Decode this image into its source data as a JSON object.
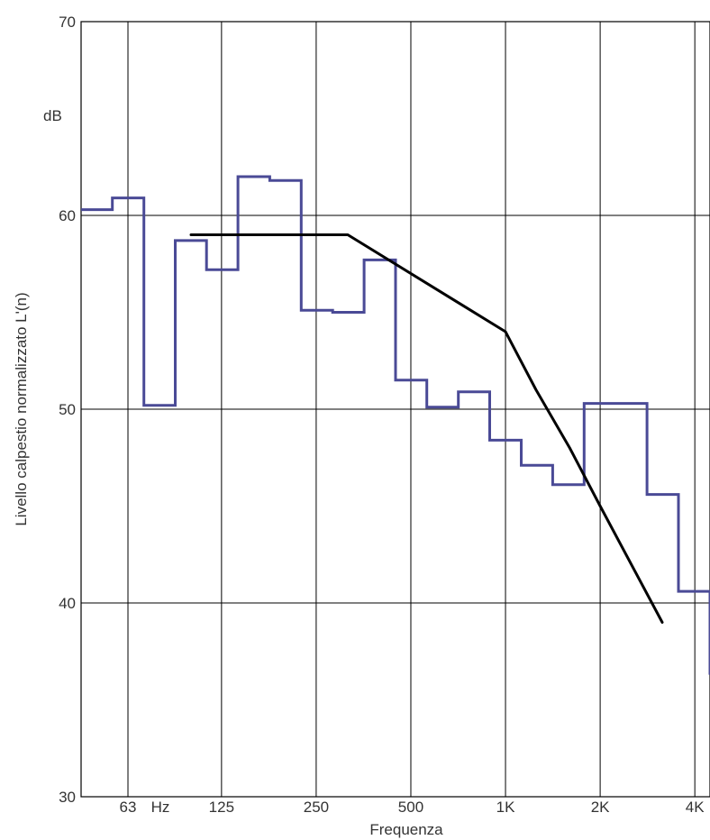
{
  "chart_data": {
    "type": "line",
    "xlabel": "Frequenza",
    "ylabel": "Livello calpestio normalizzato L'(n)",
    "yunit": "dB",
    "xunit": "Hz",
    "x_scale": "log",
    "ylim": [
      30,
      70
    ],
    "xlim": [
      44.7,
      4470
    ],
    "grid": true,
    "x_ticks": [
      {
        "value": 63,
        "label": "63"
      },
      {
        "value": 125,
        "label": "125"
      },
      {
        "value": 250,
        "label": "250"
      },
      {
        "value": 500,
        "label": "500"
      },
      {
        "value": 1000,
        "label": "1K"
      },
      {
        "value": 2000,
        "label": "2K"
      },
      {
        "value": 4000,
        "label": "4K"
      }
    ],
    "y_ticks": [
      30,
      40,
      50,
      60,
      70
    ],
    "series": [
      {
        "color": "#4a4a96",
        "style": "step",
        "bands": [
          {
            "from": 44.7,
            "to": 56.2,
            "value": 60.3
          },
          {
            "from": 56.2,
            "to": 70.8,
            "value": 60.9
          },
          {
            "from": 70.8,
            "to": 89.1,
            "value": 50.2
          },
          {
            "from": 89.1,
            "to": 112,
            "value": 58.7
          },
          {
            "from": 112,
            "to": 141,
            "value": 57.2
          },
          {
            "from": 141,
            "to": 178,
            "value": 62.0
          },
          {
            "from": 178,
            "to": 224,
            "value": 61.8
          },
          {
            "from": 224,
            "to": 282,
            "value": 55.1
          },
          {
            "from": 282,
            "to": 355,
            "value": 55.0
          },
          {
            "from": 355,
            "to": 447,
            "value": 57.7
          },
          {
            "from": 447,
            "to": 562,
            "value": 51.5
          },
          {
            "from": 562,
            "to": 708,
            "value": 50.1
          },
          {
            "from": 708,
            "to": 891,
            "value": 50.9
          },
          {
            "from": 891,
            "to": 1122,
            "value": 48.4
          },
          {
            "from": 1122,
            "to": 1413,
            "value": 47.1
          },
          {
            "from": 1413,
            "to": 1778,
            "value": 46.1
          },
          {
            "from": 1778,
            "to": 2239,
            "value": 50.3
          },
          {
            "from": 2239,
            "to": 2818,
            "value": 50.3
          },
          {
            "from": 2818,
            "to": 3548,
            "value": 45.6
          },
          {
            "from": 3548,
            "to": 4470,
            "value": 40.6
          }
        ],
        "end_drop": 36.3
      },
      {
        "color": "#000000",
        "style": "line",
        "points": [
          {
            "x": 100,
            "y": 59
          },
          {
            "x": 315,
            "y": 59
          },
          {
            "x": 1000,
            "y": 54
          },
          {
            "x": 1250,
            "y": 51
          },
          {
            "x": 1600,
            "y": 48
          },
          {
            "x": 2000,
            "y": 45
          },
          {
            "x": 3150,
            "y": 39
          }
        ]
      }
    ]
  }
}
